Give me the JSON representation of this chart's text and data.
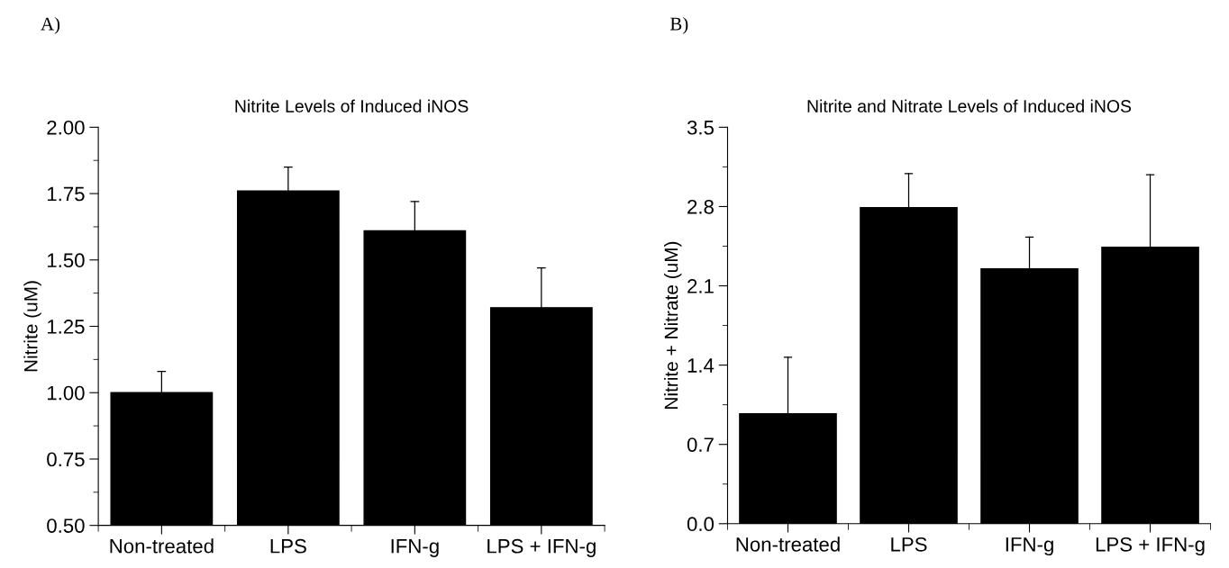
{
  "chart_data": [
    {
      "type": "bar",
      "title": "Nitrite Levels of Induced iNOS",
      "ylabel": "Nitrite (uM)",
      "annotations": [
        "A)"
      ],
      "categories": [
        "Non-treated",
        "LPS",
        "IFN-g",
        "LPS + IFN-g"
      ],
      "values": [
        1.0,
        1.76,
        1.61,
        1.32
      ],
      "color": "#000000",
      "errors": [
        [
          1.0,
          1.08
        ],
        [
          1.76,
          1.85
        ],
        [
          1.61,
          1.72
        ],
        [
          1.32,
          1.47
        ]
      ],
      "ylim": [
        0.5,
        2.0
      ],
      "yticks": [
        {
          "value": 0.5,
          "label": "0.50"
        },
        {
          "value": 0.75,
          "label": "0.75"
        },
        {
          "value": 1.0,
          "label": "1.00"
        },
        {
          "value": 1.25,
          "label": "1.25"
        },
        {
          "value": 1.5,
          "label": "1.50"
        },
        {
          "value": 1.75,
          "label": "1.75"
        },
        {
          "value": 2.0,
          "label": "2.00"
        }
      ],
      "grid": false,
      "legend": false
    },
    {
      "type": "bar",
      "title": "Nitrite and Nitrate Levels of Induced iNOS",
      "ylabel": "Nitrite + Nitrate (uM)",
      "annotations": [
        "B)"
      ],
      "categories": [
        "Non-treated",
        "LPS",
        "IFN-g",
        "LPS + IFN-g"
      ],
      "values": [
        0.97,
        2.79,
        2.25,
        2.44
      ],
      "color": "#000000",
      "errors": [
        [
          0.97,
          1.47
        ],
        [
          2.79,
          3.09
        ],
        [
          2.25,
          2.53
        ],
        [
          2.44,
          3.08
        ]
      ],
      "ylim": [
        0.0,
        3.5
      ],
      "yticks": [
        {
          "value": 0.0,
          "label": "0.0"
        },
        {
          "value": 0.7,
          "label": "0.7"
        },
        {
          "value": 1.4,
          "label": "1.4"
        },
        {
          "value": 2.1,
          "label": "2.1"
        },
        {
          "value": 2.8,
          "label": "2.8"
        },
        {
          "value": 3.5,
          "label": "3.5"
        }
      ],
      "grid": false,
      "legend": false
    }
  ]
}
